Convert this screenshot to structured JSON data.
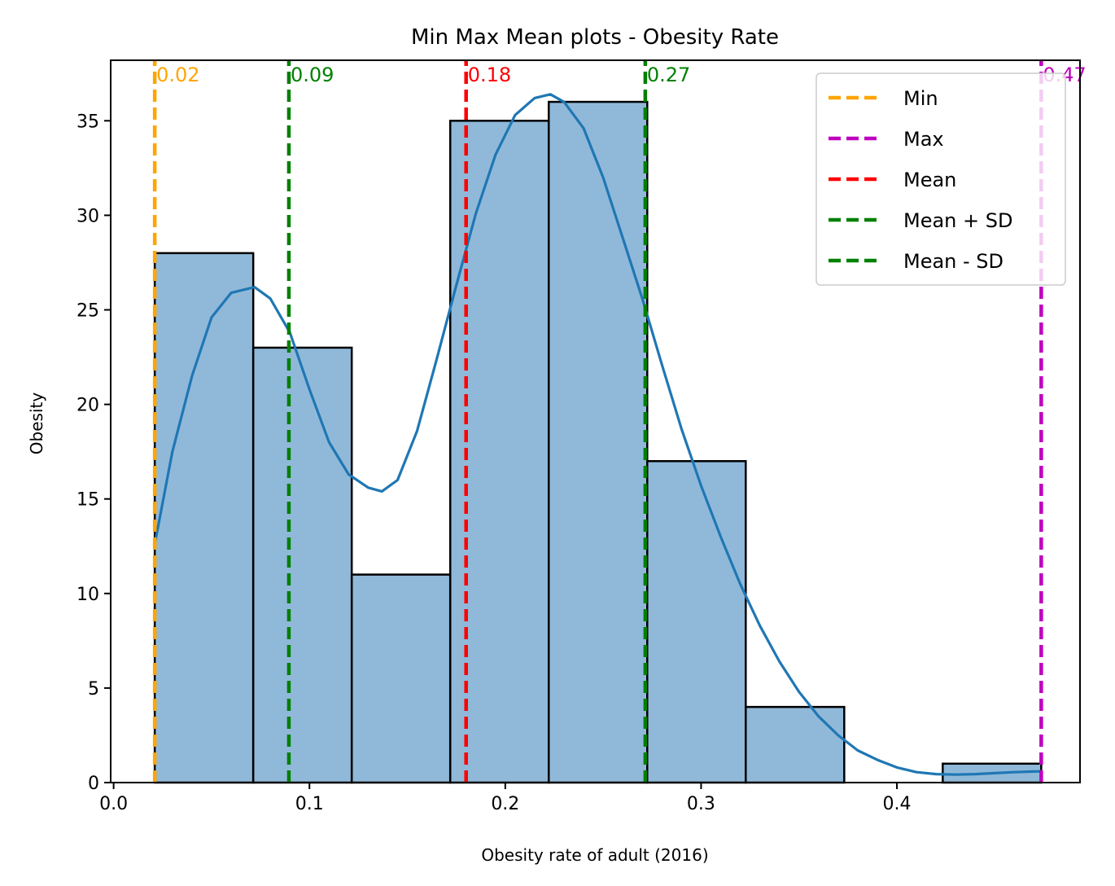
{
  "chart_data": {
    "type": "bar",
    "title": "Min Max Mean plots - Obesity Rate",
    "xlabel": "Obesity rate of adult (2016)",
    "ylabel": "Obesity",
    "xlim": [
      -0.0015,
      0.4935
    ],
    "ylim": [
      0,
      38.2
    ],
    "x_ticks": [
      0.0,
      0.1,
      0.2,
      0.3,
      0.4
    ],
    "x_tick_labels": [
      "0.0",
      "0.1",
      "0.2",
      "0.3",
      "0.4"
    ],
    "y_ticks": [
      0,
      5,
      10,
      15,
      20,
      25,
      30,
      35
    ],
    "y_tick_labels": [
      "0",
      "5",
      "10",
      "15",
      "20",
      "25",
      "30",
      "35"
    ],
    "grid": false,
    "bins": [
      {
        "start": 0.021,
        "end": 0.0713,
        "count": 28
      },
      {
        "start": 0.0713,
        "end": 0.1216,
        "count": 23
      },
      {
        "start": 0.1216,
        "end": 0.1719,
        "count": 11
      },
      {
        "start": 0.1719,
        "end": 0.2222,
        "count": 35
      },
      {
        "start": 0.2222,
        "end": 0.2725,
        "count": 36
      },
      {
        "start": 0.2725,
        "end": 0.3228,
        "count": 17
      },
      {
        "start": 0.3228,
        "end": 0.3731,
        "count": 4
      },
      {
        "start": 0.3731,
        "end": 0.4234,
        "count": 0
      },
      {
        "start": 0.4234,
        "end": 0.4737,
        "count": 1
      }
    ],
    "bar_color": "#90b9d9",
    "bar_edge_color": "#000000",
    "kde": {
      "color": "#1f77b4",
      "x": [
        0.021,
        0.03,
        0.04,
        0.05,
        0.06,
        0.072,
        0.08,
        0.09,
        0.1,
        0.11,
        0.12,
        0.13,
        0.137,
        0.145,
        0.155,
        0.165,
        0.175,
        0.185,
        0.195,
        0.205,
        0.215,
        0.223,
        0.23,
        0.24,
        0.25,
        0.26,
        0.27,
        0.28,
        0.29,
        0.3,
        0.31,
        0.32,
        0.33,
        0.34,
        0.35,
        0.36,
        0.37,
        0.38,
        0.39,
        0.4,
        0.41,
        0.42,
        0.43,
        0.44,
        0.45,
        0.46,
        0.474
      ],
      "y": [
        12.6,
        17.5,
        21.5,
        24.6,
        25.9,
        26.2,
        25.6,
        23.8,
        20.8,
        18.0,
        16.3,
        15.6,
        15.4,
        16.0,
        18.6,
        22.4,
        26.3,
        30.1,
        33.2,
        35.3,
        36.2,
        36.4,
        36.0,
        34.6,
        32.0,
        28.8,
        25.6,
        22.1,
        18.7,
        15.7,
        13.0,
        10.5,
        8.3,
        6.4,
        4.8,
        3.5,
        2.5,
        1.7,
        1.2,
        0.8,
        0.55,
        0.45,
        0.42,
        0.45,
        0.5,
        0.55,
        0.6
      ]
    },
    "vlines": [
      {
        "name": "Min",
        "x": 0.021,
        "label": "0.02",
        "color": "#ffa500"
      },
      {
        "name": "Max",
        "x": 0.4737,
        "label": "0.47",
        "color": "#bf00bf"
      },
      {
        "name": "Mean",
        "x": 0.18,
        "label": "0.18",
        "color": "#ff0000"
      },
      {
        "name": "Mean + SD",
        "x": 0.2715,
        "label": "0.27",
        "color": "#008000"
      },
      {
        "name": "Mean - SD",
        "x": 0.0895,
        "label": "0.09",
        "color": "#008000"
      }
    ],
    "legend_position": "top-right",
    "legend": [
      "Min",
      "Max",
      "Mean",
      "Mean + SD",
      "Mean - SD"
    ]
  }
}
